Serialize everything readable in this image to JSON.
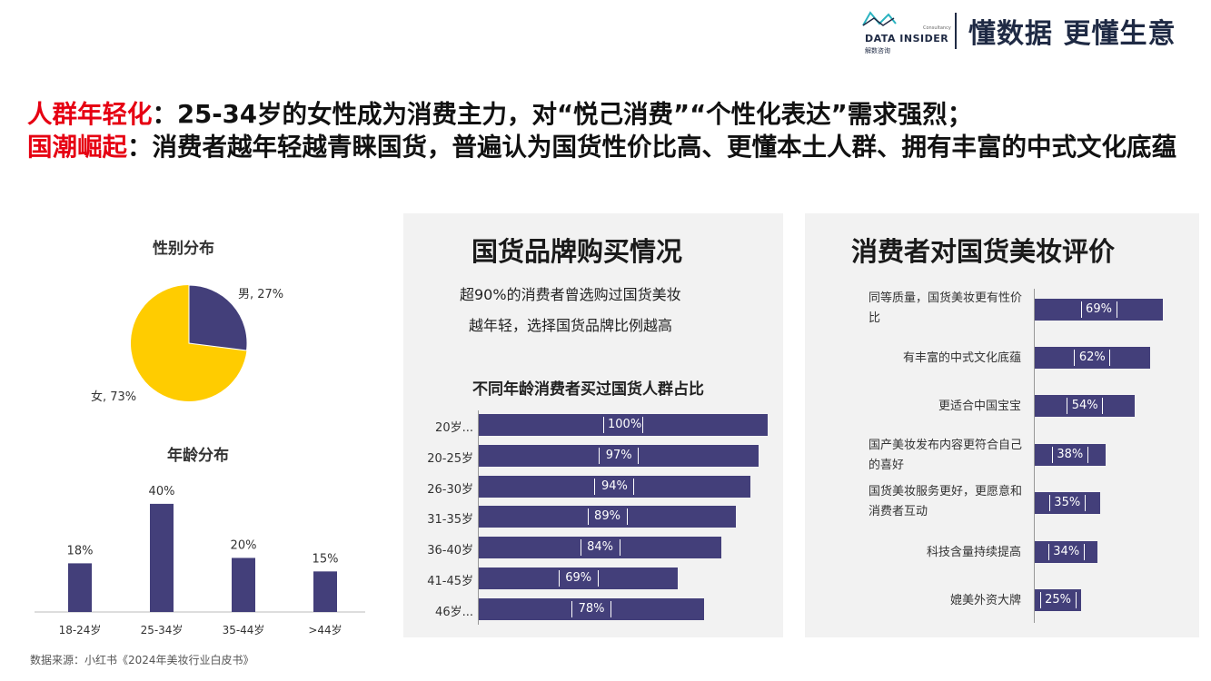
{
  "header": {
    "logo_text": "DATA INSIDER",
    "logo_sub": "解数咨询",
    "logo_corp": "Consultancy",
    "slogan": "懂数据 更懂生意",
    "accent_color": "#1f2a44"
  },
  "headline": {
    "line1_red": "人群年轻化",
    "line1_rest": "：25-34岁的女性成为消费主力，对“悦己消费”“个性化表达”需求强烈；",
    "line2_red": "国潮崛起",
    "line2_rest": "：消费者越年轻越青睐国货，普遍认为国货性价比高、更懂本土人群、拥有丰富的中式文化底蕴",
    "red_color": "#e60012"
  },
  "gender": {
    "title": "性别分布",
    "male_label": "男, 27%",
    "female_label": "女, 73%"
  },
  "age": {
    "title": "年龄分布"
  },
  "purchase": {
    "title": "国货品牌购买情况",
    "sub1": "超90%的消费者曾选购过国货美妆",
    "sub2": "越年轻，选择国货品牌比例越高",
    "chart_title": "不同年龄消费者买过国货人群占比"
  },
  "evaluation": {
    "title": "消费者对国货美妆评价"
  },
  "source": "数据来源：小红书《2024年美妆行业白皮书》",
  "chart_data": [
    {
      "type": "pie",
      "title": "性别分布",
      "categories": [
        "男",
        "女"
      ],
      "values": [
        27,
        73
      ],
      "colors": [
        "#433f7a",
        "#ffcc00"
      ]
    },
    {
      "type": "bar",
      "title": "年龄分布",
      "categories": [
        "18-24岁",
        "25-34岁",
        "35-44岁",
        ">44岁"
      ],
      "values": [
        18,
        40,
        20,
        15
      ],
      "value_labels": [
        "18%",
        "40%",
        "20%",
        "15%"
      ],
      "ylim": [
        0,
        45
      ],
      "color": "#433f7a"
    },
    {
      "type": "bar",
      "orientation": "horizontal",
      "title": "不同年龄消费者买过国货人群占比",
      "categories": [
        "20岁...",
        "20-25岁",
        "26-30岁",
        "31-35岁",
        "36-40岁",
        "41-45岁",
        "46岁..."
      ],
      "values": [
        100,
        97,
        94,
        89,
        84,
        69,
        78
      ],
      "value_labels": [
        "100%",
        "97%",
        "94%",
        "89%",
        "84%",
        "69%",
        "78%"
      ],
      "xlim": [
        0,
        100
      ],
      "color": "#433f7a"
    },
    {
      "type": "bar",
      "orientation": "horizontal",
      "title": "消费者对国货美妆评价",
      "categories": [
        "同等质量，国货美妆更有性价比",
        "有丰富的中式文化底蕴",
        "更适合中国宝宝",
        "国产美妆发布内容更符合自己的喜好",
        "国货美妆服务更好，更愿意和消费者互动",
        "科技含量持续提高",
        "媲美外资大牌"
      ],
      "values": [
        69,
        62,
        54,
        38,
        35,
        34,
        25
      ],
      "value_labels": [
        "69%",
        "62%",
        "54%",
        "38%",
        "35%",
        "34%",
        "25%"
      ],
      "xlim": [
        0,
        69
      ],
      "color": "#433f7a"
    }
  ]
}
